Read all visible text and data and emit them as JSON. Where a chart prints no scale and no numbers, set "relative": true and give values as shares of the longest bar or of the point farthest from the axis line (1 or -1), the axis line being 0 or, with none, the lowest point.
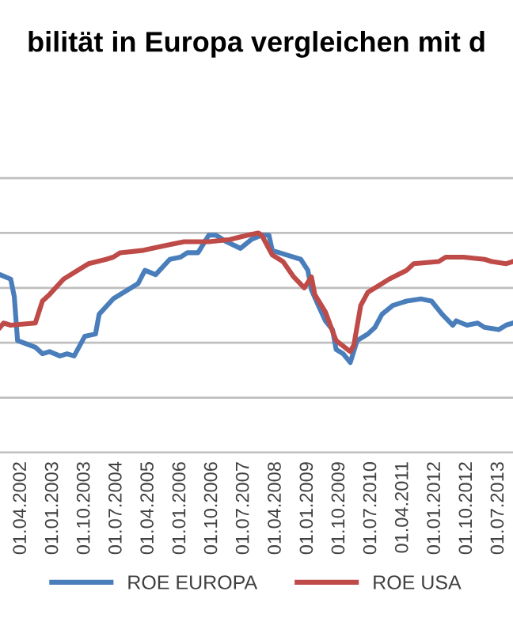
{
  "chart_data": {
    "type": "line",
    "title": "bilität in Europa vergleichen mit d",
    "relative": true,
    "grid": "y",
    "legend": "bottom",
    "marker": "none",
    "line_style": "solid",
    "xlim": [
      "2001-10",
      "2013-11"
    ],
    "xticks": [
      {
        "value": "2002-04-01",
        "label": "01.04.2002"
      },
      {
        "value": "2003-01-01",
        "label": "01.01.2003"
      },
      {
        "value": "2003-10-01",
        "label": "01.10.2003"
      },
      {
        "value": "2004-07-01",
        "label": "01.07.2004"
      },
      {
        "value": "2005-04-01",
        "label": "01.04.2005"
      },
      {
        "value": "2006-01-01",
        "label": "01.01.2006"
      },
      {
        "value": "2006-10-01",
        "label": "01.10.2006"
      },
      {
        "value": "2007-07-01",
        "label": "01.07.2007"
      },
      {
        "value": "2008-04-01",
        "label": "01.04.2008"
      },
      {
        "value": "2009-01-01",
        "label": "01.01.2009"
      },
      {
        "value": "2009-10-01",
        "label": "01.10.2009"
      },
      {
        "value": "2010-07-01",
        "label": "01.07.2010"
      },
      {
        "value": "2011-04-01",
        "label": "01.04.2011"
      },
      {
        "value": "2012-01-01",
        "label": "01.01.2012"
      },
      {
        "value": "2012-10-01",
        "label": "01.10.2012"
      },
      {
        "value": "2013-07-01",
        "label": "01.07.2013"
      }
    ],
    "series": [
      {
        "name": "ROE EUROPA",
        "color": "#4a7ebb",
        "x": [
          "2001-10",
          "2002-01",
          "2002-02",
          "2002-03",
          "2002-08",
          "2002-10",
          "2002-12",
          "2003-03",
          "2003-05",
          "2003-07",
          "2003-10",
          "2004-01",
          "2004-02",
          "2004-06",
          "2004-10",
          "2005-01",
          "2005-03",
          "2005-06",
          "2005-10",
          "2006-01",
          "2006-03",
          "2006-06",
          "2006-09",
          "2006-11",
          "2007-02",
          "2007-06",
          "2007-09",
          "2007-12",
          "2008-02",
          "2008-03",
          "2008-07",
          "2008-11",
          "2009-01",
          "2009-02",
          "2009-04",
          "2009-06",
          "2009-08",
          "2009-09",
          "2009-11",
          "2010-01",
          "2010-03",
          "2010-06",
          "2010-08",
          "2010-10",
          "2011-01",
          "2011-05",
          "2011-09",
          "2011-12",
          "2012-03",
          "2012-06",
          "2012-07",
          "2012-10",
          "2013-01",
          "2013-03",
          "2013-07",
          "2013-09",
          "2013-11"
        ],
        "values": [
          0.81,
          0.79,
          0.71,
          0.51,
          0.48,
          0.45,
          0.46,
          0.44,
          0.45,
          0.44,
          0.53,
          0.54,
          0.63,
          0.7,
          0.74,
          0.77,
          0.83,
          0.81,
          0.88,
          0.89,
          0.91,
          0.91,
          0.99,
          0.99,
          0.96,
          0.93,
          0.97,
          0.99,
          0.99,
          0.92,
          0.9,
          0.88,
          0.83,
          0.74,
          0.67,
          0.6,
          0.56,
          0.47,
          0.45,
          0.41,
          0.51,
          0.54,
          0.57,
          0.63,
          0.67,
          0.69,
          0.7,
          0.69,
          0.63,
          0.58,
          0.6,
          0.58,
          0.59,
          0.57,
          0.56,
          0.58,
          0.59
        ]
      },
      {
        "name": "ROE USA",
        "color": "#be4b48",
        "x": [
          "2001-10",
          "2001-11",
          "2002-01",
          "2002-08",
          "2002-10",
          "2002-12",
          "2003-04",
          "2003-08",
          "2003-11",
          "2004-04",
          "2004-06",
          "2004-08",
          "2005-02",
          "2005-08",
          "2006-02",
          "2006-09",
          "2007-03",
          "2007-08",
          "2007-11",
          "2007-12",
          "2008-03",
          "2008-06",
          "2008-09",
          "2008-12",
          "2009-02",
          "2009-03",
          "2009-06",
          "2009-09",
          "2010-01",
          "2010-02",
          "2010-04",
          "2010-06",
          "2010-09",
          "2010-12",
          "2011-05",
          "2011-07",
          "2012-02",
          "2012-04",
          "2012-09",
          "2013-03",
          "2013-05",
          "2013-09",
          "2013-11"
        ],
        "values": [
          0.57,
          0.59,
          0.58,
          0.59,
          0.69,
          0.72,
          0.79,
          0.83,
          0.86,
          0.88,
          0.89,
          0.91,
          0.92,
          0.94,
          0.96,
          0.96,
          0.97,
          0.99,
          1.0,
          0.99,
          0.9,
          0.87,
          0.8,
          0.75,
          0.8,
          0.72,
          0.64,
          0.51,
          0.46,
          0.49,
          0.67,
          0.73,
          0.76,
          0.79,
          0.83,
          0.86,
          0.87,
          0.89,
          0.89,
          0.88,
          0.87,
          0.86,
          0.87
        ]
      }
    ]
  }
}
